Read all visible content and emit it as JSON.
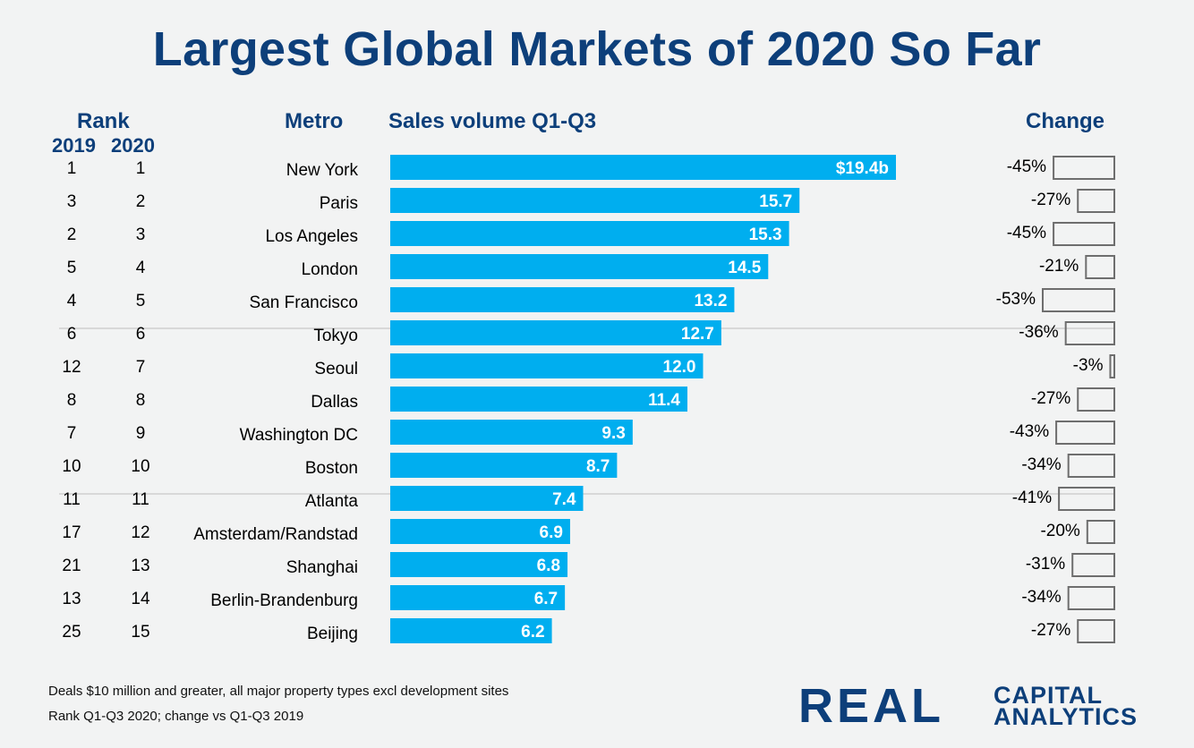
{
  "title": "Largest Global Markets of 2020 So Far",
  "headers": {
    "rank": "Rank",
    "y2019": "2019",
    "y2020": "2020",
    "metro": "Metro",
    "sales": "Sales volume Q1-Q3",
    "change": "Change"
  },
  "footnotes": [
    "Deals $10 million and greater, all major property types excl development sites",
    "Rank Q1-Q3 2020; change vs Q1-Q3 2019"
  ],
  "logo": {
    "main": "REAL",
    "line1": "CAPITAL",
    "line2": "ANALYTICS"
  },
  "colors": {
    "bar": "#00aeef",
    "title": "#0d3f7a",
    "change_box_border": "#6e6e6e",
    "divider": "#bdbdbd",
    "logo_accent": "#e05a1c"
  },
  "chart_data": {
    "type": "bar",
    "orientation": "horizontal",
    "unit": "$b",
    "rank_2019": [
      1,
      3,
      2,
      5,
      4,
      6,
      12,
      8,
      7,
      10,
      11,
      17,
      21,
      13,
      25
    ],
    "rank_2020": [
      1,
      2,
      3,
      4,
      5,
      6,
      7,
      8,
      9,
      10,
      11,
      12,
      13,
      14,
      15
    ],
    "categories": [
      "New York",
      "Paris",
      "Los Angeles",
      "London",
      "San Francisco",
      "Tokyo",
      "Seoul",
      "Dallas",
      "Washington DC",
      "Boston",
      "Atlanta",
      "Amsterdam/Randstad",
      "Shanghai",
      "Berlin-Brandenburg",
      "Beijing"
    ],
    "values": [
      19.4,
      15.7,
      15.3,
      14.5,
      13.2,
      12.7,
      12.0,
      11.4,
      9.3,
      8.7,
      7.4,
      6.9,
      6.8,
      6.7,
      6.2
    ],
    "value_labels": [
      "$19.4b",
      "15.7",
      "15.3",
      "14.5",
      "13.2",
      "12.7",
      "12.0",
      "11.4",
      "9.3",
      "8.7",
      "7.4",
      "6.9",
      "6.8",
      "6.7",
      "6.2"
    ],
    "change": [
      -45,
      -27,
      -45,
      -21,
      -53,
      -36,
      -3,
      -27,
      -43,
      -34,
      -41,
      -20,
      -31,
      -34,
      -27
    ],
    "change_labels": [
      "-45%",
      "-27%",
      "-45%",
      "-21%",
      "-53%",
      "-36%",
      "-3%",
      "-27%",
      "-43%",
      "-34%",
      "-41%",
      "-20%",
      "-31%",
      "-34%",
      "-27%"
    ],
    "xlim": [
      0,
      19.4
    ],
    "grid": false,
    "legend": "none"
  }
}
